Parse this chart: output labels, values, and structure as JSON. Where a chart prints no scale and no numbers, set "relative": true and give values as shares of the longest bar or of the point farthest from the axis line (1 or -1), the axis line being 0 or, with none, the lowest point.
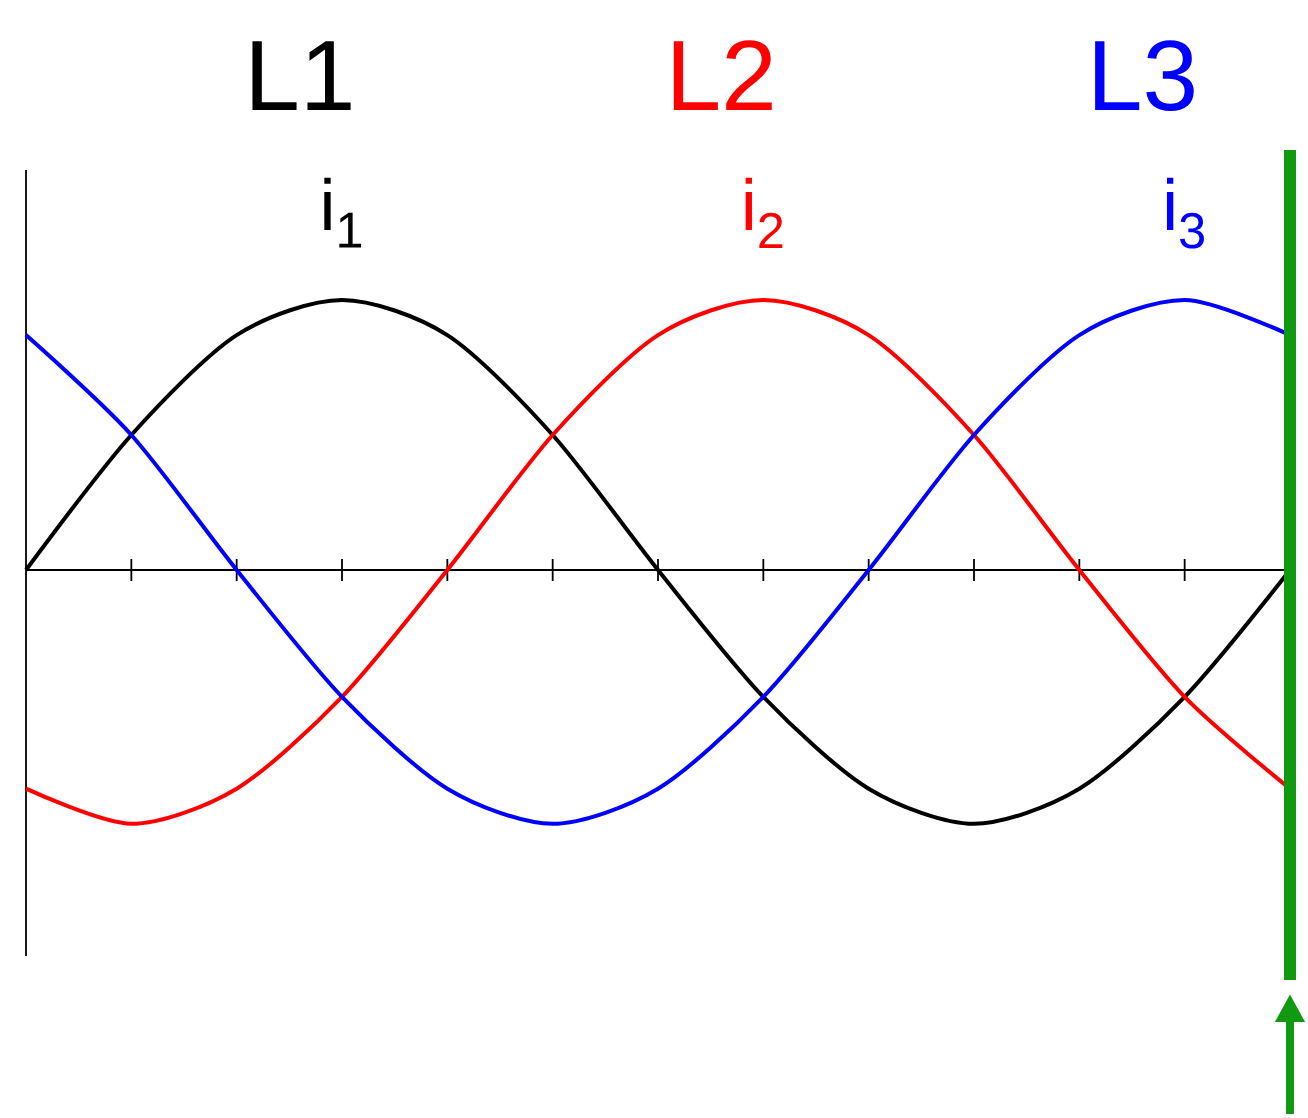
{
  "chart_data": {
    "type": "line",
    "relative": true,
    "categories": [
      null,
      null,
      null,
      null,
      null,
      null,
      null,
      null,
      null,
      null,
      null,
      null,
      null
    ],
    "series": [
      {
        "name": "i$_{1}$",
        "color": "#000000",
        "values": [
          0,
          0.5,
          0.87,
          1,
          0.87,
          0.5,
          0,
          -0.47,
          -0.81,
          -0.94,
          -0.81,
          -0.47,
          0
        ]
      },
      {
        "name": "i$_{2}$",
        "color": "#ff0000",
        "values": [
          -0.81,
          -0.94,
          -0.81,
          -0.47,
          0,
          0.5,
          0.87,
          1,
          0.87,
          0.5,
          0,
          -0.47,
          -0.81
        ]
      },
      {
        "name": "i$_{3}$",
        "color": "#0000ff",
        "values": [
          0.87,
          0.5,
          0,
          -0.47,
          -0.81,
          -0.94,
          -0.81,
          -0.47,
          0,
          0.5,
          0.87,
          1,
          0.87
        ]
      }
    ],
    "annotations": [
      "L1",
      "L2",
      "L3"
    ],
    "grid": false,
    "legend": false,
    "marker": "none",
    "line_style": "solid"
  }
}
